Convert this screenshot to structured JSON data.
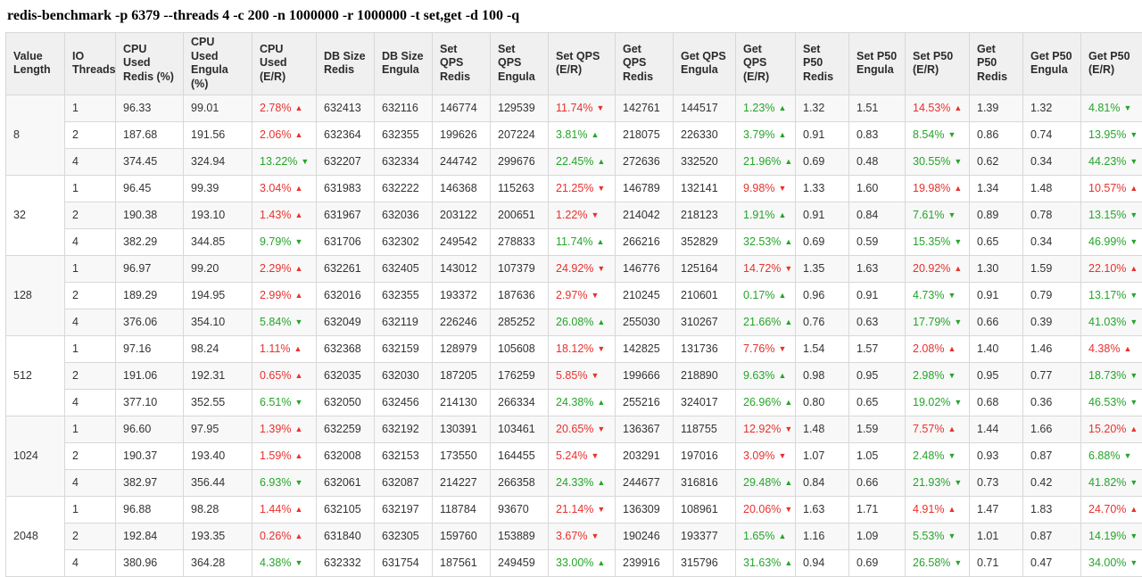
{
  "title": "redis-benchmark -p 6379 --threads 4 -c 200 -n 1000000 -r 1000000 -t set,get -d 100 -q",
  "colors": {
    "red": "#e8312d",
    "green": "#25a52a"
  },
  "table": {
    "columns": [
      "Value Length",
      "IO Threads",
      "CPU Used Redis (%)",
      "CPU Used Engula (%)",
      "CPU Used (E/R)",
      "DB Size Redis",
      "DB Size Engula",
      "Set QPS Redis",
      "Set QPS Engula",
      "Set QPS (E/R)",
      "Get QPS Redis",
      "Get QPS Engula",
      "Get QPS (E/R)",
      "Set P50 Redis",
      "Set P50 Engula",
      "Set P50 (E/R)",
      "Get P50 Redis",
      "Get P50 Engula",
      "Get P50 (E/R)"
    ],
    "groups": [
      {
        "value_length": "8",
        "rows": [
          [
            "1",
            "96.33",
            "99.01",
            {
              "v": "2.78%",
              "d": "up",
              "c": "red"
            },
            "632413",
            "632116",
            "146774",
            "129539",
            {
              "v": "11.74%",
              "d": "down",
              "c": "red"
            },
            "142761",
            "144517",
            {
              "v": "1.23%",
              "d": "up",
              "c": "green"
            },
            "1.32",
            "1.51",
            {
              "v": "14.53%",
              "d": "up",
              "c": "red"
            },
            "1.39",
            "1.32",
            {
              "v": "4.81%",
              "d": "down",
              "c": "green"
            }
          ],
          [
            "2",
            "187.68",
            "191.56",
            {
              "v": "2.06%",
              "d": "up",
              "c": "red"
            },
            "632364",
            "632355",
            "199626",
            "207224",
            {
              "v": "3.81%",
              "d": "up",
              "c": "green"
            },
            "218075",
            "226330",
            {
              "v": "3.79%",
              "d": "up",
              "c": "green"
            },
            "0.91",
            "0.83",
            {
              "v": "8.54%",
              "d": "down",
              "c": "green"
            },
            "0.86",
            "0.74",
            {
              "v": "13.95%",
              "d": "down",
              "c": "green"
            }
          ],
          [
            "4",
            "374.45",
            "324.94",
            {
              "v": "13.22%",
              "d": "down",
              "c": "green"
            },
            "632207",
            "632334",
            "244742",
            "299676",
            {
              "v": "22.45%",
              "d": "up",
              "c": "green"
            },
            "272636",
            "332520",
            {
              "v": "21.96%",
              "d": "up",
              "c": "green"
            },
            "0.69",
            "0.48",
            {
              "v": "30.55%",
              "d": "down",
              "c": "green"
            },
            "0.62",
            "0.34",
            {
              "v": "44.23%",
              "d": "down",
              "c": "green"
            }
          ]
        ]
      },
      {
        "value_length": "32",
        "rows": [
          [
            "1",
            "96.45",
            "99.39",
            {
              "v": "3.04%",
              "d": "up",
              "c": "red"
            },
            "631983",
            "632222",
            "146368",
            "115263",
            {
              "v": "21.25%",
              "d": "down",
              "c": "red"
            },
            "146789",
            "132141",
            {
              "v": "9.98%",
              "d": "down",
              "c": "red"
            },
            "1.33",
            "1.60",
            {
              "v": "19.98%",
              "d": "up",
              "c": "red"
            },
            "1.34",
            "1.48",
            {
              "v": "10.57%",
              "d": "up",
              "c": "red"
            }
          ],
          [
            "2",
            "190.38",
            "193.10",
            {
              "v": "1.43%",
              "d": "up",
              "c": "red"
            },
            "631967",
            "632036",
            "203122",
            "200651",
            {
              "v": "1.22%",
              "d": "down",
              "c": "red"
            },
            "214042",
            "218123",
            {
              "v": "1.91%",
              "d": "up",
              "c": "green"
            },
            "0.91",
            "0.84",
            {
              "v": "7.61%",
              "d": "down",
              "c": "green"
            },
            "0.89",
            "0.78",
            {
              "v": "13.15%",
              "d": "down",
              "c": "green"
            }
          ],
          [
            "4",
            "382.29",
            "344.85",
            {
              "v": "9.79%",
              "d": "down",
              "c": "green"
            },
            "631706",
            "632302",
            "249542",
            "278833",
            {
              "v": "11.74%",
              "d": "up",
              "c": "green"
            },
            "266216",
            "352829",
            {
              "v": "32.53%",
              "d": "up",
              "c": "green"
            },
            "0.69",
            "0.59",
            {
              "v": "15.35%",
              "d": "down",
              "c": "green"
            },
            "0.65",
            "0.34",
            {
              "v": "46.99%",
              "d": "down",
              "c": "green"
            }
          ]
        ]
      },
      {
        "value_length": "128",
        "rows": [
          [
            "1",
            "96.97",
            "99.20",
            {
              "v": "2.29%",
              "d": "up",
              "c": "red"
            },
            "632261",
            "632405",
            "143012",
            "107379",
            {
              "v": "24.92%",
              "d": "down",
              "c": "red"
            },
            "146776",
            "125164",
            {
              "v": "14.72%",
              "d": "down",
              "c": "red"
            },
            "1.35",
            "1.63",
            {
              "v": "20.92%",
              "d": "up",
              "c": "red"
            },
            "1.30",
            "1.59",
            {
              "v": "22.10%",
              "d": "up",
              "c": "red"
            }
          ],
          [
            "2",
            "189.29",
            "194.95",
            {
              "v": "2.99%",
              "d": "up",
              "c": "red"
            },
            "632016",
            "632355",
            "193372",
            "187636",
            {
              "v": "2.97%",
              "d": "down",
              "c": "red"
            },
            "210245",
            "210601",
            {
              "v": "0.17%",
              "d": "up",
              "c": "green"
            },
            "0.96",
            "0.91",
            {
              "v": "4.73%",
              "d": "down",
              "c": "green"
            },
            "0.91",
            "0.79",
            {
              "v": "13.17%",
              "d": "down",
              "c": "green"
            }
          ],
          [
            "4",
            "376.06",
            "354.10",
            {
              "v": "5.84%",
              "d": "down",
              "c": "green"
            },
            "632049",
            "632119",
            "226246",
            "285252",
            {
              "v": "26.08%",
              "d": "up",
              "c": "green"
            },
            "255030",
            "310267",
            {
              "v": "21.66%",
              "d": "up",
              "c": "green"
            },
            "0.76",
            "0.63",
            {
              "v": "17.79%",
              "d": "down",
              "c": "green"
            },
            "0.66",
            "0.39",
            {
              "v": "41.03%",
              "d": "down",
              "c": "green"
            }
          ]
        ]
      },
      {
        "value_length": "512",
        "rows": [
          [
            "1",
            "97.16",
            "98.24",
            {
              "v": "1.11%",
              "d": "up",
              "c": "red"
            },
            "632368",
            "632159",
            "128979",
            "105608",
            {
              "v": "18.12%",
              "d": "down",
              "c": "red"
            },
            "142825",
            "131736",
            {
              "v": "7.76%",
              "d": "down",
              "c": "red"
            },
            "1.54",
            "1.57",
            {
              "v": "2.08%",
              "d": "up",
              "c": "red"
            },
            "1.40",
            "1.46",
            {
              "v": "4.38%",
              "d": "up",
              "c": "red"
            }
          ],
          [
            "2",
            "191.06",
            "192.31",
            {
              "v": "0.65%",
              "d": "up",
              "c": "red"
            },
            "632035",
            "632030",
            "187205",
            "176259",
            {
              "v": "5.85%",
              "d": "down",
              "c": "red"
            },
            "199666",
            "218890",
            {
              "v": "9.63%",
              "d": "up",
              "c": "green"
            },
            "0.98",
            "0.95",
            {
              "v": "2.98%",
              "d": "down",
              "c": "green"
            },
            "0.95",
            "0.77",
            {
              "v": "18.73%",
              "d": "down",
              "c": "green"
            }
          ],
          [
            "4",
            "377.10",
            "352.55",
            {
              "v": "6.51%",
              "d": "down",
              "c": "green"
            },
            "632050",
            "632456",
            "214130",
            "266334",
            {
              "v": "24.38%",
              "d": "up",
              "c": "green"
            },
            "255216",
            "324017",
            {
              "v": "26.96%",
              "d": "up",
              "c": "green"
            },
            "0.80",
            "0.65",
            {
              "v": "19.02%",
              "d": "down",
              "c": "green"
            },
            "0.68",
            "0.36",
            {
              "v": "46.53%",
              "d": "down",
              "c": "green"
            }
          ]
        ]
      },
      {
        "value_length": "1024",
        "rows": [
          [
            "1",
            "96.60",
            "97.95",
            {
              "v": "1.39%",
              "d": "up",
              "c": "red"
            },
            "632259",
            "632192",
            "130391",
            "103461",
            {
              "v": "20.65%",
              "d": "down",
              "c": "red"
            },
            "136367",
            "118755",
            {
              "v": "12.92%",
              "d": "down",
              "c": "red"
            },
            "1.48",
            "1.59",
            {
              "v": "7.57%",
              "d": "up",
              "c": "red"
            },
            "1.44",
            "1.66",
            {
              "v": "15.20%",
              "d": "up",
              "c": "red"
            }
          ],
          [
            "2",
            "190.37",
            "193.40",
            {
              "v": "1.59%",
              "d": "up",
              "c": "red"
            },
            "632008",
            "632153",
            "173550",
            "164455",
            {
              "v": "5.24%",
              "d": "down",
              "c": "red"
            },
            "203291",
            "197016",
            {
              "v": "3.09%",
              "d": "down",
              "c": "red"
            },
            "1.07",
            "1.05",
            {
              "v": "2.48%",
              "d": "down",
              "c": "green"
            },
            "0.93",
            "0.87",
            {
              "v": "6.88%",
              "d": "down",
              "c": "green"
            }
          ],
          [
            "4",
            "382.97",
            "356.44",
            {
              "v": "6.93%",
              "d": "down",
              "c": "green"
            },
            "632061",
            "632087",
            "214227",
            "266358",
            {
              "v": "24.33%",
              "d": "up",
              "c": "green"
            },
            "244677",
            "316816",
            {
              "v": "29.48%",
              "d": "up",
              "c": "green"
            },
            "0.84",
            "0.66",
            {
              "v": "21.93%",
              "d": "down",
              "c": "green"
            },
            "0.73",
            "0.42",
            {
              "v": "41.82%",
              "d": "down",
              "c": "green"
            }
          ]
        ]
      },
      {
        "value_length": "2048",
        "rows": [
          [
            "1",
            "96.88",
            "98.28",
            {
              "v": "1.44%",
              "d": "up",
              "c": "red"
            },
            "632105",
            "632197",
            "118784",
            "93670",
            {
              "v": "21.14%",
              "d": "down",
              "c": "red"
            },
            "136309",
            "108961",
            {
              "v": "20.06%",
              "d": "down",
              "c": "red"
            },
            "1.63",
            "1.71",
            {
              "v": "4.91%",
              "d": "up",
              "c": "red"
            },
            "1.47",
            "1.83",
            {
              "v": "24.70%",
              "d": "up",
              "c": "red"
            }
          ],
          [
            "2",
            "192.84",
            "193.35",
            {
              "v": "0.26%",
              "d": "up",
              "c": "red"
            },
            "631840",
            "632305",
            "159760",
            "153889",
            {
              "v": "3.67%",
              "d": "down",
              "c": "red"
            },
            "190246",
            "193377",
            {
              "v": "1.65%",
              "d": "up",
              "c": "green"
            },
            "1.16",
            "1.09",
            {
              "v": "5.53%",
              "d": "down",
              "c": "green"
            },
            "1.01",
            "0.87",
            {
              "v": "14.19%",
              "d": "down",
              "c": "green"
            }
          ],
          [
            "4",
            "380.96",
            "364.28",
            {
              "v": "4.38%",
              "d": "down",
              "c": "green"
            },
            "632332",
            "631754",
            "187561",
            "249459",
            {
              "v": "33.00%",
              "d": "up",
              "c": "green"
            },
            "239916",
            "315796",
            {
              "v": "31.63%",
              "d": "up",
              "c": "green"
            },
            "0.94",
            "0.69",
            {
              "v": "26.58%",
              "d": "down",
              "c": "green"
            },
            "0.71",
            "0.47",
            {
              "v": "34.00%",
              "d": "down",
              "c": "green"
            }
          ]
        ]
      }
    ]
  }
}
